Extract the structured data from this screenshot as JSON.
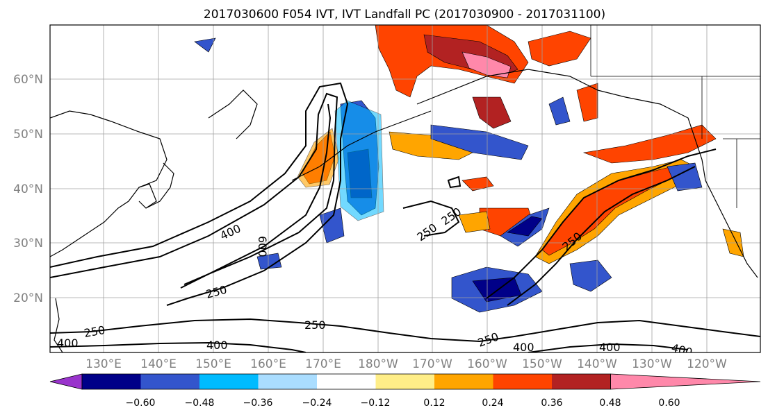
{
  "title": "2017030600 F054 IVT, IVT Landfall PC (2017030900 - 2017031100)",
  "map": {
    "lon_ticks": [
      "130°E",
      "140°E",
      "150°E",
      "160°E",
      "170°E",
      "180°W",
      "170°W",
      "160°W",
      "150°W",
      "140°W",
      "130°W",
      "120°W"
    ],
    "lat_ticks": [
      "20°N",
      "30°N",
      "40°N",
      "50°N",
      "60°N"
    ],
    "grid": true,
    "ivt_contour_levels": [
      250,
      400,
      600
    ],
    "contour_labels": [
      "400",
      "600",
      "250",
      "250",
      "250",
      "250",
      "250",
      "400",
      "250",
      "250",
      "400",
      "400",
      "400",
      "250",
      "400"
    ]
  },
  "colorbar": {
    "tick_labels": [
      "−0.60",
      "−0.48",
      "−0.36",
      "−0.24",
      "−0.12",
      "0.12",
      "0.24",
      "0.36",
      "0.48",
      "0.60"
    ],
    "colors": [
      "#9933cc",
      "#000088",
      "#3355cc",
      "#00bbff",
      "#aaddff",
      "#ffffff",
      "#ffee88",
      "#ffa500",
      "#ff4400",
      "#b22222",
      "#ff88aa"
    ]
  }
}
